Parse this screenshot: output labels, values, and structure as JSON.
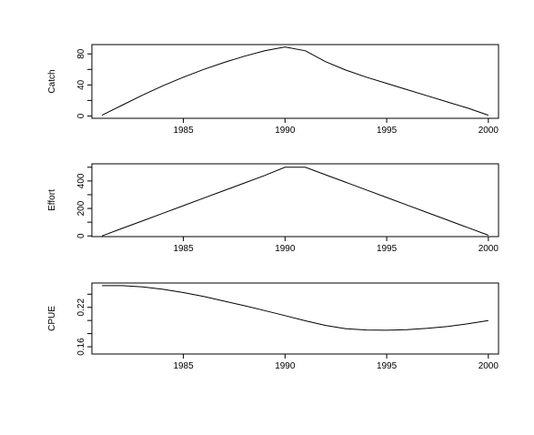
{
  "chart_data": [
    {
      "type": "line",
      "ylabel": "Catch",
      "xlim": [
        1980.5,
        2000.5
      ],
      "ylim": [
        -3,
        92
      ],
      "x_ticks": [
        1985,
        1990,
        1995,
        2000
      ],
      "y_ticks": [
        0,
        20,
        40,
        60,
        80
      ],
      "y_tick_labels": [
        "0",
        "",
        "40",
        "",
        "80"
      ],
      "x": [
        1981,
        1982,
        1983,
        1984,
        1985,
        1986,
        1987,
        1988,
        1989,
        1990,
        1991,
        1992,
        1993,
        1994,
        1995,
        1996,
        1997,
        1998,
        1999,
        2000
      ],
      "values": [
        1,
        14,
        27,
        39,
        50,
        60,
        69,
        77,
        84,
        89,
        84,
        70,
        59,
        50,
        42,
        34,
        26,
        18,
        10,
        1
      ],
      "grid": false
    },
    {
      "type": "line",
      "ylabel": "Effort",
      "xlim": [
        1980.5,
        2000.5
      ],
      "ylim": [
        -5,
        525
      ],
      "x_ticks": [
        1985,
        1990,
        1995,
        2000
      ],
      "y_ticks": [
        0,
        100,
        200,
        300,
        400,
        500
      ],
      "y_tick_labels": [
        "0",
        "",
        "200",
        "",
        "400",
        ""
      ],
      "x": [
        1981,
        1982,
        1983,
        1984,
        1985,
        1986,
        1987,
        1988,
        1989,
        1990,
        1991,
        1992,
        1993,
        1994,
        1995,
        1996,
        1997,
        1998,
        1999,
        2000
      ],
      "values": [
        0,
        55,
        110,
        165,
        220,
        275,
        330,
        385,
        440,
        500,
        500,
        445,
        390,
        335,
        280,
        225,
        170,
        115,
        60,
        5
      ],
      "grid": false
    },
    {
      "type": "line",
      "ylabel": "CPUE",
      "xlim": [
        1980.5,
        2000.5
      ],
      "ylim": [
        0.149,
        0.257
      ],
      "x_ticks": [
        1985,
        1990,
        1995,
        2000
      ],
      "y_ticks": [
        0.16,
        0.18,
        0.2,
        0.22,
        0.24
      ],
      "y_tick_labels": [
        "0.16",
        "",
        "",
        "0.22",
        ""
      ],
      "x": [
        1981,
        1982,
        1983,
        1984,
        1985,
        1986,
        1987,
        1988,
        1989,
        1990,
        1991,
        1992,
        1993,
        1994,
        1995,
        1996,
        1997,
        1998,
        1999,
        2000
      ],
      "values": [
        0.253,
        0.253,
        0.251,
        0.2475,
        0.2425,
        0.2365,
        0.2295,
        0.2225,
        0.215,
        0.2075,
        0.1995,
        0.1925,
        0.1875,
        0.1855,
        0.1852,
        0.186,
        0.188,
        0.191,
        0.195,
        0.2
      ],
      "grid": false
    }
  ]
}
